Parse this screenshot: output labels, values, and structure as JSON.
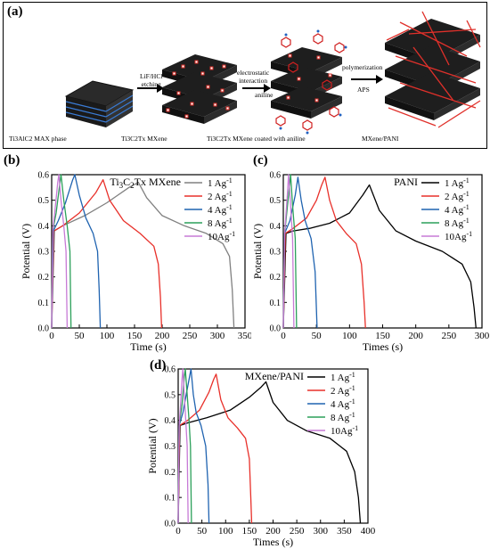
{
  "panel_a": {
    "letter": "(a)",
    "stage_labels": [
      "Ti3AlC2 MAX phase",
      "Ti3C2Tx MXene",
      "Ti3C2Tx MXene coated with aniline",
      "MXene/PANI"
    ],
    "step_labels": {
      "etch_line1": "LiF/HCl",
      "etch_line2": "etching",
      "electro_line1": "electrostatic",
      "electro_line2": "interaction",
      "aniline": "aniline",
      "poly_line1": "polymerization",
      "poly_line2": "APS"
    }
  },
  "chart_data": [
    {
      "panel": "(b)",
      "type": "line",
      "title": "Ti3C2Tx MXene",
      "xlabel": "Time (s)",
      "ylabel": "Potential (V)",
      "xlim": [
        0,
        350
      ],
      "ylim": [
        0,
        0.6
      ],
      "xticks": [
        0,
        50,
        100,
        150,
        200,
        250,
        300,
        350
      ],
      "yticks": [
        0.0,
        0.1,
        0.2,
        0.3,
        0.4,
        0.5,
        0.6
      ],
      "legend_position": "top-right",
      "series": [
        {
          "name": "1 Ag-1",
          "color": "#808080",
          "x": [
            0,
            5,
            20,
            60,
            100,
            140,
            157,
            172,
            200,
            240,
            280,
            310,
            322,
            327,
            330
          ],
          "y": [
            0.0,
            0.38,
            0.4,
            0.44,
            0.49,
            0.55,
            0.57,
            0.51,
            0.44,
            0.4,
            0.37,
            0.33,
            0.28,
            0.15,
            0.0
          ]
        },
        {
          "name": "2 Ag-1",
          "color": "#e8302a",
          "x": [
            0,
            4,
            20,
            50,
            80,
            93,
            105,
            130,
            160,
            185,
            193,
            197,
            199
          ],
          "y": [
            0.0,
            0.38,
            0.4,
            0.45,
            0.53,
            0.58,
            0.5,
            0.42,
            0.37,
            0.32,
            0.25,
            0.12,
            0.0
          ]
        },
        {
          "name": "4 Ag-1",
          "color": "#1f63b0",
          "x": [
            0,
            3,
            12,
            25,
            38,
            42,
            50,
            62,
            75,
            83,
            86,
            88
          ],
          "y": [
            0.0,
            0.38,
            0.42,
            0.49,
            0.58,
            0.6,
            0.52,
            0.43,
            0.37,
            0.3,
            0.15,
            0.0
          ]
        },
        {
          "name": "8 Ag-1",
          "color": "#2ca05a",
          "x": [
            0,
            2,
            8,
            15,
            17,
            22,
            28,
            33,
            35
          ],
          "y": [
            0.0,
            0.38,
            0.45,
            0.57,
            0.6,
            0.5,
            0.4,
            0.3,
            0.0
          ]
        },
        {
          "name": "10Ag-1",
          "color": "#c77ad6",
          "x": [
            0,
            2,
            6,
            11,
            13,
            17,
            22,
            26,
            28
          ],
          "y": [
            0.0,
            0.38,
            0.46,
            0.57,
            0.6,
            0.5,
            0.4,
            0.3,
            0.0
          ]
        }
      ]
    },
    {
      "panel": "(c)",
      "type": "line",
      "title": "PANI",
      "xlabel": "Times (s)",
      "ylabel": "Potential (V)",
      "xlim": [
        0,
        300
      ],
      "ylim": [
        0,
        0.6
      ],
      "xticks": [
        0,
        50,
        100,
        150,
        200,
        250,
        300
      ],
      "yticks": [
        0.0,
        0.1,
        0.2,
        0.3,
        0.4,
        0.5,
        0.6
      ],
      "legend_position": "top-right",
      "series": [
        {
          "name": "1 Ag-1",
          "color": "#000000",
          "x": [
            0,
            4,
            15,
            40,
            70,
            100,
            120,
            130,
            145,
            170,
            200,
            240,
            270,
            283,
            288,
            291
          ],
          "y": [
            0.0,
            0.37,
            0.38,
            0.39,
            0.41,
            0.45,
            0.52,
            0.56,
            0.46,
            0.38,
            0.34,
            0.3,
            0.25,
            0.18,
            0.08,
            0.0
          ]
        },
        {
          "name": "2 Ag-1",
          "color": "#e8302a",
          "x": [
            0,
            3,
            15,
            35,
            50,
            58,
            63,
            70,
            80,
            95,
            110,
            118,
            122,
            124
          ],
          "y": [
            0.0,
            0.37,
            0.39,
            0.43,
            0.5,
            0.56,
            0.59,
            0.5,
            0.42,
            0.37,
            0.33,
            0.25,
            0.1,
            0.0
          ]
        },
        {
          "name": "4 Ag-1",
          "color": "#1f63b0",
          "x": [
            0,
            2,
            10,
            18,
            22,
            27,
            33,
            42,
            48,
            51
          ],
          "y": [
            0.0,
            0.37,
            0.42,
            0.52,
            0.59,
            0.5,
            0.42,
            0.35,
            0.22,
            0.0
          ]
        },
        {
          "name": "8 Ag-1",
          "color": "#2ca05a",
          "x": [
            0,
            2,
            8,
            11,
            14,
            18,
            20
          ],
          "y": [
            0.0,
            0.37,
            0.52,
            0.6,
            0.48,
            0.35,
            0.0
          ]
        },
        {
          "name": "10Ag-1",
          "color": "#c77ad6",
          "x": [
            0,
            2,
            6,
            8,
            11,
            14,
            16
          ],
          "y": [
            0.0,
            0.37,
            0.52,
            0.6,
            0.48,
            0.35,
            0.0
          ]
        }
      ]
    },
    {
      "panel": "(d)",
      "type": "line",
      "title": "MXene/PANI",
      "xlabel": "Times (s)",
      "ylabel": "Potential (V)",
      "xlim": [
        0,
        400
      ],
      "ylim": [
        0,
        0.6
      ],
      "xticks": [
        0,
        50,
        100,
        150,
        200,
        250,
        300,
        350,
        400
      ],
      "yticks": [
        0.0,
        0.1,
        0.2,
        0.3,
        0.4,
        0.5,
        0.6
      ],
      "legend_position": "top-right",
      "series": [
        {
          "name": "1 Ag-1",
          "color": "#000000",
          "x": [
            0,
            4,
            20,
            60,
            110,
            150,
            175,
            185,
            200,
            230,
            270,
            320,
            355,
            372,
            380,
            384
          ],
          "y": [
            0.0,
            0.38,
            0.39,
            0.41,
            0.44,
            0.49,
            0.53,
            0.55,
            0.47,
            0.4,
            0.36,
            0.33,
            0.28,
            0.2,
            0.1,
            0.0
          ]
        },
        {
          "name": "2 Ag-1",
          "color": "#e8302a",
          "x": [
            0,
            3,
            20,
            45,
            65,
            75,
            80,
            90,
            105,
            125,
            142,
            150,
            153,
            155
          ],
          "y": [
            0.0,
            0.38,
            0.4,
            0.44,
            0.51,
            0.56,
            0.58,
            0.48,
            0.41,
            0.37,
            0.33,
            0.25,
            0.1,
            0.0
          ]
        },
        {
          "name": "4 Ag-1",
          "color": "#1f63b0",
          "x": [
            0,
            2,
            10,
            20,
            27,
            32,
            38,
            48,
            58,
            63,
            65
          ],
          "y": [
            0.0,
            0.38,
            0.43,
            0.53,
            0.6,
            0.5,
            0.43,
            0.38,
            0.3,
            0.15,
            0.0
          ]
        },
        {
          "name": "8 Ag-1",
          "color": "#2ca05a",
          "x": [
            0,
            2,
            8,
            13,
            15,
            19,
            23,
            26,
            28
          ],
          "y": [
            0.0,
            0.38,
            0.46,
            0.57,
            0.6,
            0.5,
            0.4,
            0.3,
            0.0
          ]
        },
        {
          "name": "10Ag-1",
          "color": "#c77ad6",
          "x": [
            0,
            2,
            5,
            8,
            10,
            13,
            16,
            19,
            21
          ],
          "y": [
            0.0,
            0.38,
            0.46,
            0.56,
            0.6,
            0.5,
            0.4,
            0.3,
            0.0
          ]
        }
      ]
    }
  ]
}
